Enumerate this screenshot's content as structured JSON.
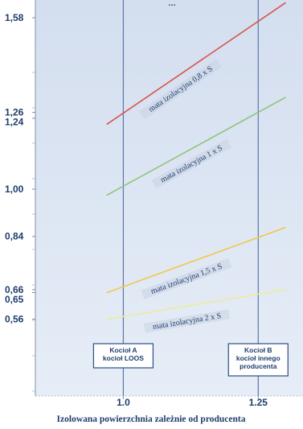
{
  "chart_data": {
    "type": "line",
    "title": "…",
    "xlabel": "Izolowana powierzchnia zależnie od producenta",
    "ylabel": "",
    "xlim": [
      0.84,
      1.33
    ],
    "ylim": [
      0.3,
      1.64
    ],
    "y_tick_labels": [
      "1,58",
      "1,26",
      "1,24",
      "1,00",
      "0,84",
      "0,66",
      "0,65",
      "0,56"
    ],
    "x_tick_labels": [
      "1.0",
      "1.25"
    ],
    "series": [
      {
        "name": "mata izolacyjna 0,8 x S",
        "color": "#d9534f",
        "x": [
          0.97,
          1.3
        ],
        "y": [
          1.22,
          1.63
        ]
      },
      {
        "name": "mata izolacyjna 1 x S",
        "color": "#8fc47a",
        "x": [
          0.97,
          1.3
        ],
        "y": [
          0.98,
          1.31
        ]
      },
      {
        "name": "mata izolacyjna 1,5 x S",
        "color": "#f3c74e",
        "x": [
          0.97,
          1.3
        ],
        "y": [
          0.65,
          0.87
        ]
      },
      {
        "name": "mata izolacyjna 2 x S",
        "color": "#eeea9a",
        "x": [
          0.97,
          1.3
        ],
        "y": [
          0.56,
          0.66
        ]
      }
    ],
    "reference_lines": [
      {
        "x": 1.0,
        "label_lines": [
          "Kocioł A",
          "kocioł LOOS"
        ]
      },
      {
        "x": 1.25,
        "label_lines": [
          "Kocioł B",
          "kocioł innego",
          "producenta"
        ]
      }
    ],
    "grid": false,
    "background": "#dde6f3"
  }
}
